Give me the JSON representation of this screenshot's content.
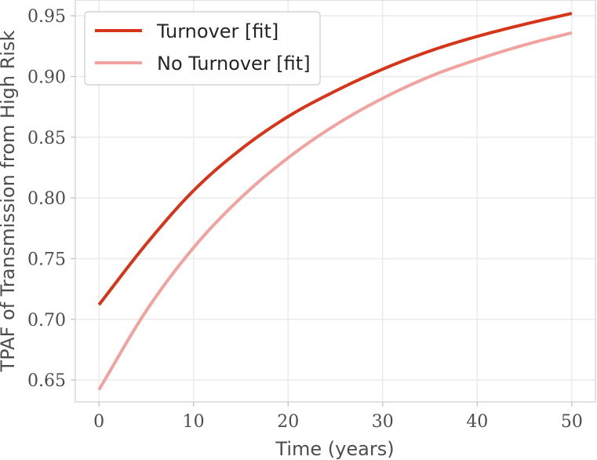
{
  "chart_data": {
    "type": "line",
    "xlabel": "Time (years)",
    "ylabel": "TPAF of Transmission from High Risk",
    "xlim": [
      -2.5,
      52.5
    ],
    "ylim": [
      0.632,
      0.963
    ],
    "xticks": [
      0,
      10,
      20,
      30,
      40,
      50
    ],
    "yticks": [
      0.65,
      0.7,
      0.75,
      0.8,
      0.85,
      0.9,
      0.95
    ],
    "xtick_labels": [
      "0",
      "10",
      "20",
      "30",
      "40",
      "50"
    ],
    "ytick_labels": [
      "0.65",
      "0.70",
      "0.75",
      "0.80",
      "0.85",
      "0.90",
      "0.95"
    ],
    "grid": true,
    "legend_position": "top-left",
    "series": [
      {
        "name": "Turnover [fit]",
        "color": "#d63519",
        "x": [
          0,
          5,
          10,
          15,
          20,
          25,
          30,
          35,
          40,
          45,
          50
        ],
        "y": [
          0.712,
          0.762,
          0.806,
          0.84,
          0.867,
          0.888,
          0.906,
          0.921,
          0.933,
          0.943,
          0.952
        ]
      },
      {
        "name": "No Turnover [fit]",
        "color": "#f0a39f",
        "x": [
          0,
          5,
          10,
          15,
          20,
          25,
          30,
          35,
          40,
          45,
          50
        ],
        "y": [
          0.642,
          0.707,
          0.759,
          0.8,
          0.833,
          0.86,
          0.882,
          0.9,
          0.914,
          0.926,
          0.936
        ]
      }
    ]
  }
}
